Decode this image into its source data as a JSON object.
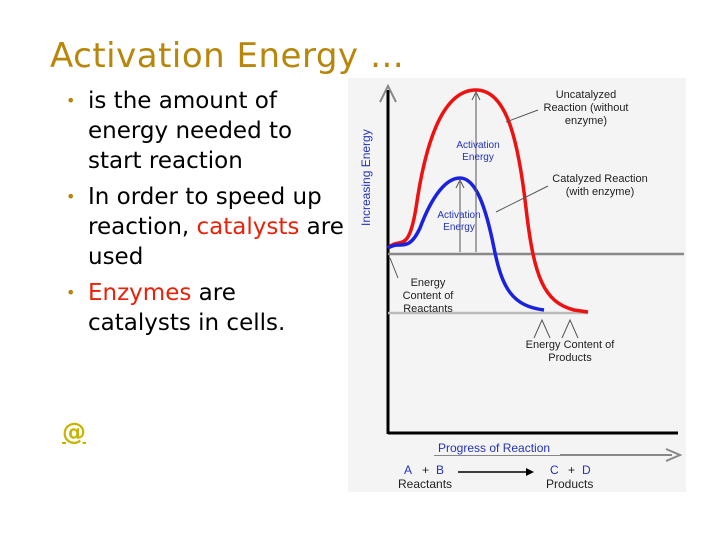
{
  "slide": {
    "title": "Activation Energy …",
    "bullets": [
      {
        "parts": [
          {
            "text": "is the amount of energy needed to start reaction",
            "color": "#000000"
          }
        ]
      },
      {
        "parts": [
          {
            "text": "In order to speed up reaction, ",
            "color": "#000000"
          },
          {
            "text": "catalysts",
            "color": "#e8220a"
          },
          {
            "text": " are used",
            "color": "#000000"
          }
        ]
      },
      {
        "parts": [
          {
            "text": "Enzymes",
            "color": "#e8220a"
          },
          {
            "text": " are catalysts in cells.",
            "color": "#000000"
          }
        ]
      }
    ],
    "link_text": "@"
  },
  "diagram": {
    "y_axis_label": "Increasing Energy",
    "x_axis_label": "Progress of Reaction",
    "uncatalyzed_label_lines": [
      "Uncatalyzed",
      "Reaction (without",
      "enzyme)"
    ],
    "catalyzed_label_lines": [
      "Catalyzed Reaction",
      "(with enzyme)"
    ],
    "activation_energy_uncatalyzed_lines": [
      "Activation",
      "Energy"
    ],
    "activation_energy_catalyzed_lines": [
      "Activation",
      "Energy"
    ],
    "reactants_energy_lines": [
      "Energy",
      "Content of",
      "Reactants"
    ],
    "products_energy_lines": [
      "Energy Content of",
      "Products"
    ],
    "equation": {
      "a": "A",
      "plus1": "+",
      "b": "B",
      "c": "C",
      "plus2": "+",
      "d": "D",
      "reactants": "Reactants",
      "products": "Products"
    },
    "colors": {
      "uncatalyzed": "#ee1111",
      "catalyzed": "#1a22dd",
      "text_blue": "#2233bb",
      "text_dark": "#222222",
      "axis": "#000000",
      "level": "#888888",
      "panel": "#f4f4f4"
    }
  }
}
